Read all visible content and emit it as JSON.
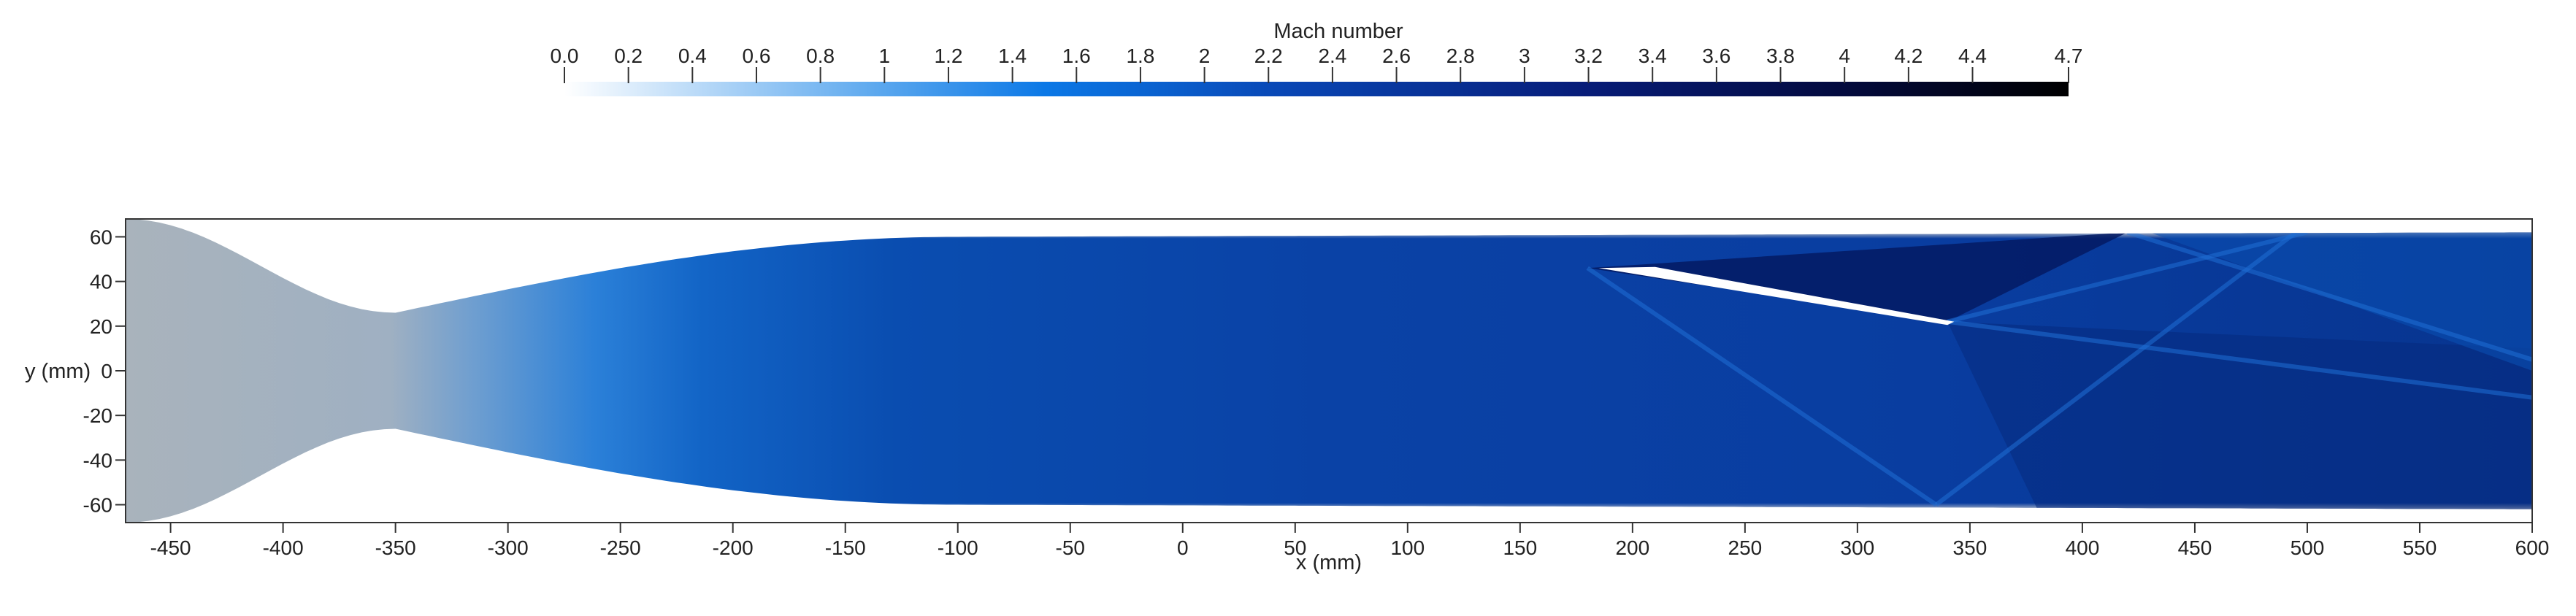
{
  "colorbar": {
    "title": "Mach number",
    "range": [
      0.0,
      4.7
    ],
    "tick_values": [
      0.0,
      0.2,
      0.4,
      0.6,
      0.8,
      1,
      1.2,
      1.4,
      1.6,
      1.8,
      2,
      2.2,
      2.4,
      2.6,
      2.8,
      3,
      3.2,
      3.4,
      3.6,
      3.8,
      4,
      4.2,
      4.4,
      4.7
    ],
    "tick_labels": [
      "0.0",
      "0.2",
      "0.4",
      "0.6",
      "0.8",
      "1",
      "1.2",
      "1.4",
      "1.6",
      "1.8",
      "2",
      "2.2",
      "2.4",
      "2.6",
      "2.8",
      "3",
      "3.2",
      "3.4",
      "3.6",
      "3.8",
      "4",
      "4.2",
      "4.4",
      "4.7"
    ],
    "colors": {
      "low": "#ffffff",
      "one": "#5aa7ee",
      "mid": "#0b78e6",
      "high": "#0a1e7a",
      "max": "#000000"
    }
  },
  "plot": {
    "x_axis": {
      "title": "x (mm)",
      "range": [
        -470,
        600
      ],
      "ticks": [
        -450,
        -400,
        -350,
        -300,
        -250,
        -200,
        -150,
        -100,
        -50,
        0,
        50,
        100,
        150,
        200,
        250,
        300,
        350,
        400,
        450,
        500,
        550,
        600
      ],
      "tick_labels": [
        "-450",
        "-400",
        "-350",
        "-300",
        "-250",
        "-200",
        "-150",
        "-100",
        "-50",
        "0",
        "50",
        "100",
        "150",
        "200",
        "250",
        "300",
        "350",
        "400",
        "450",
        "500",
        "550",
        "600"
      ]
    },
    "y_axis": {
      "title": "y (mm)",
      "range": [
        -68,
        68
      ],
      "ticks": [
        60,
        40,
        20,
        0,
        -20,
        -40,
        -60
      ],
      "tick_labels": [
        "60",
        "40",
        "20",
        "0",
        "-20",
        "-40",
        "-60"
      ]
    },
    "field_colors": {
      "plenum": "#a8b2bb",
      "throat": "#2f86db",
      "core": "#0a3fa3",
      "expansion": "#063088",
      "boundary_layer": "#d8cfc0",
      "deep": "#041a63"
    }
  }
}
